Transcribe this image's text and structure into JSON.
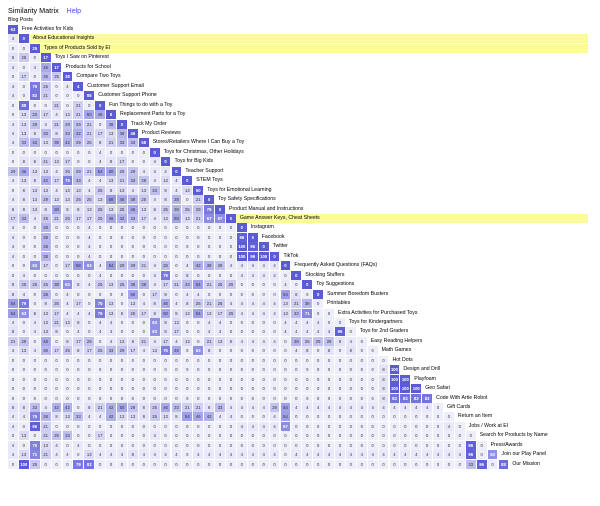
{
  "header": {
    "title": "Similarity Matrix",
    "help": "Help",
    "subtitle": "Blog Posts"
  },
  "colors": {
    "highlight": "#fbfb9a",
    "accent": "#4a4fd6",
    "diagonal": "#5b5bd6",
    "cell_low": "#eeeefb",
    "cell_high": "#5b5bd6"
  },
  "highlighted_rows": [
    1,
    2,
    20
  ],
  "rows": [
    {
      "label": "Free Activities for Kids",
      "values": [
        63
      ]
    },
    {
      "label": "About Educational Insights",
      "values": [
        4,
        0
      ]
    },
    {
      "label": "Types of Products Sold by EI",
      "values": [
        0,
        0,
        25
      ]
    },
    {
      "label": "Toys I Saw on Pinterest",
      "values": [
        8,
        25,
        0,
        17
      ]
    },
    {
      "label": "Products for School",
      "values": [
        4,
        0,
        4,
        46,
        17
      ]
    },
    {
      "label": "Compare Two Toys",
      "values": [
        0,
        17,
        0,
        36,
        25,
        38
      ]
    },
    {
      "label": "Customer Support Email",
      "values": [
        4,
        0,
        79,
        25,
        0,
        4,
        4
      ]
    },
    {
      "label": "Customer Support Phone",
      "values": [
        4,
        0,
        83,
        21,
        0,
        0,
        0,
        88
      ]
    },
    {
      "label": "Fun Things to do with a Toy",
      "values": [
        0,
        88,
        0,
        0,
        21,
        0,
        21,
        0,
        0
      ]
    },
    {
      "label": "Replacement Parts for a Toy",
      "values": [
        0,
        13,
        33,
        17,
        4,
        13,
        21,
        50,
        46,
        8
      ]
    },
    {
      "label": "Track My Order",
      "values": [
        4,
        13,
        29,
        4,
        21,
        29,
        29,
        21,
        0,
        38,
        0
      ]
    },
    {
      "label": "Product Reviews",
      "values": [
        4,
        13,
        8,
        33,
        8,
        33,
        42,
        21,
        17,
        13,
        38,
        46
      ]
    },
    {
      "label": "Stores/Retailers Where I Can Buy a Toy",
      "values": [
        4,
        33,
        42,
        13,
        38,
        42,
        29,
        25,
        8,
        21,
        33,
        33,
        58
      ]
    },
    {
      "label": "Toys for Christmas, Other Holidays",
      "values": [
        0,
        0,
        0,
        0,
        0,
        0,
        0,
        0,
        4,
        0,
        0,
        0,
        0,
        0
      ]
    },
    {
      "label": "Toys for Big Kids",
      "values": [
        0,
        8,
        8,
        21,
        13,
        17,
        0,
        0,
        4,
        8,
        17,
        0,
        0,
        4,
        0
      ]
    },
    {
      "label": "Teacher Support",
      "values": [
        29,
        46,
        13,
        13,
        4,
        25,
        29,
        21,
        54,
        50,
        25,
        29,
        4,
        4,
        4,
        0
      ]
    },
    {
      "label": "STEM Toys",
      "values": [
        4,
        13,
        8,
        42,
        17,
        75,
        33,
        4,
        4,
        13,
        21,
        33,
        29,
        4,
        13,
        4,
        0
      ]
    },
    {
      "label": "Toys for Emotional Learning",
      "values": [
        0,
        8,
        13,
        13,
        4,
        13,
        13,
        4,
        25,
        8,
        13,
        4,
        13,
        33,
        8,
        4,
        13,
        50
      ]
    },
    {
      "label": "Toy Safety Specifications",
      "values": [
        4,
        8,
        13,
        29,
        13,
        13,
        25,
        25,
        13,
        58,
        46,
        38,
        25,
        4,
        8,
        38,
        0,
        21,
        0
      ]
    },
    {
      "label": "Product Manual and Instructions",
      "values": [
        8,
        8,
        13,
        8,
        50,
        8,
        8,
        13,
        25,
        13,
        25,
        46,
        13,
        8,
        25,
        38,
        25,
        29,
        79,
        0
      ]
    },
    {
      "label": "Game Answer Keys, Cheat Sheets",
      "values": [
        17,
        33,
        4,
        25,
        21,
        25,
        17,
        17,
        25,
        46,
        42,
        33,
        17,
        4,
        13,
        50,
        13,
        21,
        67,
        67,
        0
      ]
    },
    {
      "label": "Instagram",
      "values": [
        4,
        0,
        0,
        38,
        0,
        0,
        0,
        4,
        0,
        0,
        0,
        0,
        0,
        0,
        0,
        0,
        0,
        0,
        0,
        0,
        0,
        0
      ]
    },
    {
      "label": "Facebook",
      "values": [
        4,
        0,
        0,
        38,
        0,
        0,
        0,
        4,
        0,
        0,
        0,
        0,
        0,
        0,
        0,
        0,
        0,
        0,
        0,
        0,
        0,
        96,
        0
      ]
    },
    {
      "label": "Twitter",
      "values": [
        4,
        0,
        0,
        38,
        0,
        0,
        0,
        4,
        0,
        0,
        0,
        0,
        0,
        0,
        0,
        0,
        0,
        0,
        0,
        0,
        0,
        100,
        96,
        0
      ]
    },
    {
      "label": "TikTok",
      "values": [
        4,
        0,
        0,
        38,
        0,
        0,
        0,
        4,
        0,
        0,
        0,
        0,
        0,
        0,
        0,
        0,
        0,
        0,
        0,
        0,
        0,
        100,
        96,
        100,
        0
      ]
    },
    {
      "label": "Frequently Asked Questions (FAQs)",
      "values": [
        0,
        0,
        63,
        17,
        0,
        17,
        58,
        63,
        4,
        54,
        29,
        29,
        21,
        4,
        33,
        0,
        4,
        42,
        38,
        29,
        4,
        4,
        4,
        4,
        4,
        0
      ]
    },
    {
      "label": "Stocking Stuffers",
      "values": [
        0,
        4,
        0,
        0,
        0,
        0,
        0,
        0,
        4,
        0,
        0,
        0,
        0,
        4,
        79,
        0,
        8,
        0,
        0,
        0,
        0,
        4,
        4,
        4,
        4,
        0,
        0
      ]
    },
    {
      "label": "Toy Suggestions",
      "values": [
        8,
        25,
        25,
        25,
        38,
        63,
        8,
        4,
        25,
        13,
        25,
        38,
        38,
        4,
        17,
        21,
        33,
        54,
        21,
        25,
        25,
        0,
        0,
        0,
        0,
        4,
        0,
        0
      ]
    },
    {
      "label": "Summer Boredom Busters",
      "values": [
        8,
        4,
        0,
        38,
        0,
        4,
        0,
        0,
        0,
        0,
        0,
        50,
        0,
        17,
        8,
        0,
        4,
        4,
        0,
        0,
        0,
        0,
        0,
        0,
        0,
        54,
        8,
        0,
        0
      ]
    },
    {
      "label": "Printables",
      "values": [
        54,
        79,
        0,
        8,
        25,
        4,
        17,
        0,
        75,
        13,
        0,
        13,
        4,
        8,
        46,
        4,
        8,
        25,
        21,
        25,
        4,
        4,
        4,
        4,
        4,
        13,
        21,
        38,
        0
      ]
    },
    {
      "label": "Extra Activities for Purchased Toys",
      "values": [
        54,
        63,
        8,
        13,
        17,
        4,
        4,
        4,
        79,
        13,
        8,
        25,
        17,
        8,
        50,
        8,
        13,
        54,
        13,
        17,
        25,
        4,
        4,
        4,
        4,
        13,
        33,
        71,
        0,
        0
      ]
    },
    {
      "label": "Toys for Kindergartners",
      "values": [
        4,
        0,
        4,
        13,
        21,
        13,
        8,
        0,
        4,
        4,
        0,
        0,
        0,
        63,
        8,
        13,
        0,
        0,
        4,
        4,
        0,
        0,
        0,
        0,
        0,
        4,
        4,
        4,
        4,
        0,
        0
      ]
    },
    {
      "label": "Toys for 2nd Graders",
      "values": [
        8,
        0,
        4,
        13,
        8,
        0,
        4,
        0,
        4,
        4,
        0,
        0,
        0,
        63,
        8,
        17,
        0,
        0,
        4,
        4,
        0,
        0,
        0,
        0,
        0,
        4,
        4,
        4,
        4,
        4,
        96,
        0
      ]
    },
    {
      "label": "Easy Reading Helpers",
      "values": [
        21,
        29,
        0,
        46,
        0,
        8,
        17,
        29,
        0,
        4,
        13,
        8,
        21,
        4,
        17,
        4,
        13,
        0,
        21,
        13,
        8,
        4,
        4,
        4,
        4,
        0,
        38,
        25,
        29,
        29,
        8,
        4,
        0
      ]
    },
    {
      "label": "Math Games",
      "values": [
        4,
        13,
        4,
        36,
        17,
        25,
        8,
        17,
        25,
        33,
        29,
        17,
        4,
        13,
        75,
        46,
        0,
        63,
        8,
        0,
        0,
        0,
        0,
        0,
        0,
        0,
        4,
        8,
        0,
        8,
        0,
        8,
        0,
        0
      ]
    },
    {
      "label": "Hot Dots",
      "values": [
        0,
        0,
        0,
        0,
        0,
        0,
        0,
        0,
        0,
        0,
        0,
        0,
        0,
        0,
        0,
        0,
        0,
        0,
        0,
        0,
        0,
        0,
        0,
        0,
        0,
        0,
        0,
        0,
        0,
        0,
        0,
        0,
        0,
        0,
        0
      ]
    },
    {
      "label": "Design and Drill",
      "values": [
        0,
        0,
        0,
        0,
        0,
        0,
        0,
        0,
        0,
        0,
        0,
        0,
        0,
        0,
        0,
        0,
        0,
        0,
        0,
        0,
        0,
        0,
        0,
        0,
        0,
        0,
        0,
        0,
        0,
        0,
        0,
        0,
        0,
        0,
        8,
        100
      ]
    },
    {
      "label": "Playfoam",
      "values": [
        0,
        0,
        0,
        0,
        0,
        0,
        0,
        0,
        0,
        0,
        0,
        0,
        0,
        0,
        0,
        0,
        0,
        0,
        0,
        0,
        0,
        0,
        0,
        0,
        0,
        0,
        0,
        0,
        0,
        0,
        0,
        0,
        0,
        0,
        8,
        100,
        100
      ]
    },
    {
      "label": "Geo Safari",
      "values": [
        0,
        0,
        0,
        0,
        0,
        0,
        0,
        0,
        0,
        0,
        0,
        0,
        0,
        0,
        0,
        0,
        0,
        0,
        0,
        0,
        0,
        0,
        0,
        0,
        0,
        0,
        0,
        0,
        0,
        0,
        0,
        0,
        0,
        0,
        8,
        100,
        100,
        100
      ]
    },
    {
      "label": "Code With Artie Robot",
      "values": [
        0,
        0,
        0,
        0,
        0,
        0,
        0,
        0,
        0,
        0,
        0,
        0,
        0,
        0,
        0,
        0,
        0,
        0,
        0,
        0,
        0,
        0,
        0,
        0,
        0,
        0,
        0,
        0,
        0,
        0,
        0,
        0,
        0,
        0,
        8,
        83,
        83,
        83,
        83
      ]
    },
    {
      "label": "Gift Cards",
      "values": [
        8,
        8,
        33,
        4,
        42,
        42,
        0,
        8,
        21,
        42,
        50,
        29,
        8,
        25,
        46,
        33,
        21,
        21,
        8,
        33,
        4,
        4,
        4,
        4,
        29,
        54,
        4,
        4,
        4,
        4,
        4,
        4,
        4,
        4,
        4,
        4,
        4,
        4,
        4,
        0
      ]
    },
    {
      "label": "Return an Item",
      "values": [
        4,
        4,
        75,
        38,
        8,
        13,
        33,
        4,
        4,
        42,
        13,
        13,
        8,
        25,
        13,
        8,
        54,
        46,
        42,
        4,
        4,
        0,
        0,
        0,
        4,
        54,
        0,
        0,
        0,
        0,
        0,
        0,
        0,
        0,
        0,
        0,
        0,
        0,
        0,
        0,
        0
      ]
    },
    {
      "label": "Jobs / Work at EI",
      "values": [
        4,
        0,
        96,
        21,
        0,
        0,
        0,
        0,
        0,
        0,
        0,
        0,
        0,
        0,
        0,
        0,
        0,
        0,
        0,
        0,
        0,
        4,
        4,
        4,
        4,
        67,
        0,
        0,
        0,
        0,
        0,
        0,
        0,
        0,
        0,
        0,
        0,
        0,
        0,
        0,
        4,
        0
      ]
    },
    {
      "label": "Search for Products by Name",
      "values": [
        0,
        13,
        0,
        21,
        29,
        33,
        0,
        0,
        17,
        0,
        0,
        0,
        0,
        4,
        0,
        0,
        0,
        0,
        0,
        0,
        0,
        0,
        0,
        0,
        0,
        0,
        0,
        0,
        0,
        0,
        0,
        0,
        0,
        0,
        0,
        0,
        0,
        0,
        0,
        0,
        0,
        0,
        0
      ]
    },
    {
      "label": "Press/Awards",
      "values": [
        4,
        0,
        75,
        13,
        4,
        0,
        4,
        0,
        0,
        0,
        0,
        0,
        0,
        0,
        0,
        0,
        0,
        0,
        0,
        0,
        0,
        0,
        0,
        0,
        0,
        0,
        0,
        0,
        0,
        0,
        0,
        0,
        0,
        0,
        0,
        0,
        0,
        0,
        0,
        0,
        0,
        0,
        96,
        0
      ]
    },
    {
      "label": "Join our Play Panel",
      "values": [
        4,
        13,
        71,
        21,
        4,
        4,
        0,
        13,
        4,
        4,
        4,
        8,
        4,
        4,
        4,
        4,
        0,
        4,
        4,
        4,
        4,
        4,
        4,
        4,
        4,
        0,
        4,
        4,
        4,
        4,
        4,
        4,
        4,
        4,
        4,
        4,
        4,
        4,
        4,
        4,
        4,
        4,
        96,
        0,
        63
      ]
    },
    {
      "label": "Our Mission",
      "values": [
        0,
        100,
        25,
        0,
        0,
        0,
        79,
        83,
        0,
        0,
        0,
        0,
        0,
        0,
        0,
        0,
        0,
        0,
        0,
        0,
        0,
        0,
        0,
        0,
        0,
        0,
        0,
        0,
        0,
        0,
        0,
        0,
        0,
        0,
        0,
        0,
        0,
        0,
        0,
        0,
        0,
        0,
        33,
        96,
        0,
        88
      ]
    }
  ]
}
